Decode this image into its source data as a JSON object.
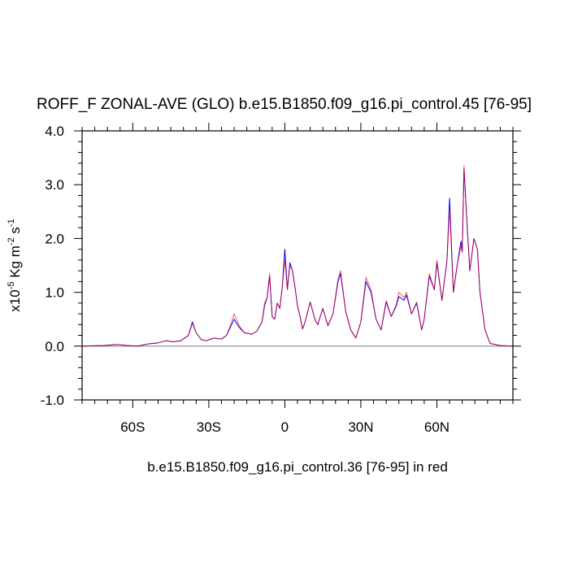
{
  "chart_data": {
    "type": "line",
    "title": "ROFF_F ZONAL-AVE (GLO) b.e15.B1850.f09_g16.pi_control.45 [76-95]",
    "subtitle": "b.e15.B1850.f09_g16.pi_control.36 [76-95] in red",
    "ylabel_parts": [
      "x10",
      "-5",
      " Kg m",
      "-2",
      " s",
      "-1"
    ],
    "xlim": [
      -80,
      90
    ],
    "ylim": [
      -1,
      4
    ],
    "xticks": [
      {
        "value": -60,
        "label": "60S"
      },
      {
        "value": -30,
        "label": "30S"
      },
      0,
      {
        "value": 30,
        "label": "30N"
      },
      {
        "value": 60,
        "label": "60N"
      }
    ],
    "yticks": [
      {
        "value": -1,
        "label": "-1.0"
      },
      {
        "value": 0,
        "label": "0.0"
      },
      {
        "value": 1,
        "label": "1.0"
      },
      {
        "value": 2,
        "label": "2.0"
      },
      {
        "value": 3,
        "label": "3.0"
      },
      {
        "value": 4,
        "label": "4.0"
      }
    ],
    "xminorticks": [
      -80,
      -75,
      -70,
      -65,
      -55,
      -50,
      -45,
      -40,
      -35,
      -25,
      -20,
      -15,
      -10,
      -5,
      5,
      10,
      15,
      20,
      25,
      35,
      40,
      45,
      50,
      55,
      65,
      70,
      75,
      80,
      85,
      90
    ],
    "yminorticks": [
      -0.8,
      -0.6,
      -0.4,
      -0.2,
      0.2,
      0.4,
      0.6,
      0.8,
      1.2,
      1.4,
      1.6,
      1.8,
      2.2,
      2.4,
      2.6,
      2.8,
      3.2,
      3.4,
      3.6,
      3.8
    ],
    "ref_line": 0,
    "ref_color": "#8c8c8c",
    "x": [
      -80,
      -72,
      -66,
      -62,
      -58,
      -54,
      -50,
      -47,
      -44,
      -41,
      -38,
      -36.5,
      -35,
      -33,
      -31,
      -28,
      -25,
      -23,
      -21,
      -20,
      -18,
      -16,
      -13,
      -11,
      -9,
      -8,
      -7,
      -6,
      -5,
      -4,
      -3,
      -2,
      -1,
      0,
      1,
      2,
      3,
      4,
      5,
      6,
      7,
      8,
      10,
      12,
      13,
      15,
      17,
      19,
      21,
      22,
      24,
      26,
      28,
      30,
      32,
      34,
      36,
      38,
      40,
      42,
      44,
      45,
      47,
      48,
      50,
      52,
      54,
      55,
      57,
      59,
      60,
      62,
      64,
      65,
      66.5,
      68,
      69.5,
      70,
      70.7,
      72,
      73,
      74.6,
      76,
      77,
      79,
      81,
      85,
      90
    ],
    "series": [
      {
        "color": "#0000ff",
        "values": [
          0,
          0.01,
          0.03,
          0.01,
          0,
          0.04,
          0.06,
          0.1,
          0.08,
          0.1,
          0.2,
          0.45,
          0.25,
          0.12,
          0.1,
          0.15,
          0.13,
          0.2,
          0.4,
          0.5,
          0.35,
          0.25,
          0.22,
          0.28,
          0.45,
          0.75,
          0.9,
          1.3,
          0.55,
          0.5,
          0.8,
          0.7,
          1.1,
          1.8,
          1.05,
          1.55,
          1.4,
          1.1,
          0.75,
          0.55,
          0.32,
          0.45,
          0.82,
          0.48,
          0.4,
          0.7,
          0.38,
          0.6,
          1.2,
          1.35,
          0.65,
          0.3,
          0.15,
          0.45,
          1.2,
          1.0,
          0.5,
          0.3,
          0.82,
          0.55,
          0.75,
          0.92,
          0.85,
          0.95,
          0.6,
          0.8,
          0.3,
          0.5,
          1.3,
          1.05,
          1.55,
          0.85,
          1.6,
          2.75,
          1.0,
          1.5,
          1.95,
          1.75,
          3.3,
          2.2,
          1.4,
          2.0,
          1.8,
          1.0,
          0.3,
          0.05,
          0.01,
          0
        ]
      },
      {
        "color": "#ff0000",
        "values": [
          0,
          0.01,
          0.03,
          0.01,
          0,
          0.04,
          0.06,
          0.1,
          0.08,
          0.1,
          0.2,
          0.42,
          0.25,
          0.12,
          0.1,
          0.15,
          0.13,
          0.2,
          0.45,
          0.6,
          0.38,
          0.25,
          0.22,
          0.28,
          0.45,
          0.8,
          0.9,
          1.35,
          0.55,
          0.5,
          0.8,
          0.7,
          1.1,
          1.6,
          1.05,
          1.5,
          1.4,
          1.1,
          0.75,
          0.55,
          0.32,
          0.45,
          0.82,
          0.48,
          0.4,
          0.7,
          0.38,
          0.6,
          1.25,
          1.4,
          0.65,
          0.3,
          0.15,
          0.45,
          1.28,
          1.05,
          0.5,
          0.3,
          0.85,
          0.55,
          0.78,
          1.0,
          0.9,
          1.0,
          0.6,
          0.82,
          0.3,
          0.5,
          1.35,
          1.05,
          1.6,
          0.85,
          1.6,
          2.55,
          1.0,
          1.5,
          1.85,
          1.75,
          3.35,
          2.2,
          1.4,
          2.0,
          1.8,
          1.0,
          0.3,
          0.05,
          0.01,
          0
        ]
      }
    ]
  }
}
